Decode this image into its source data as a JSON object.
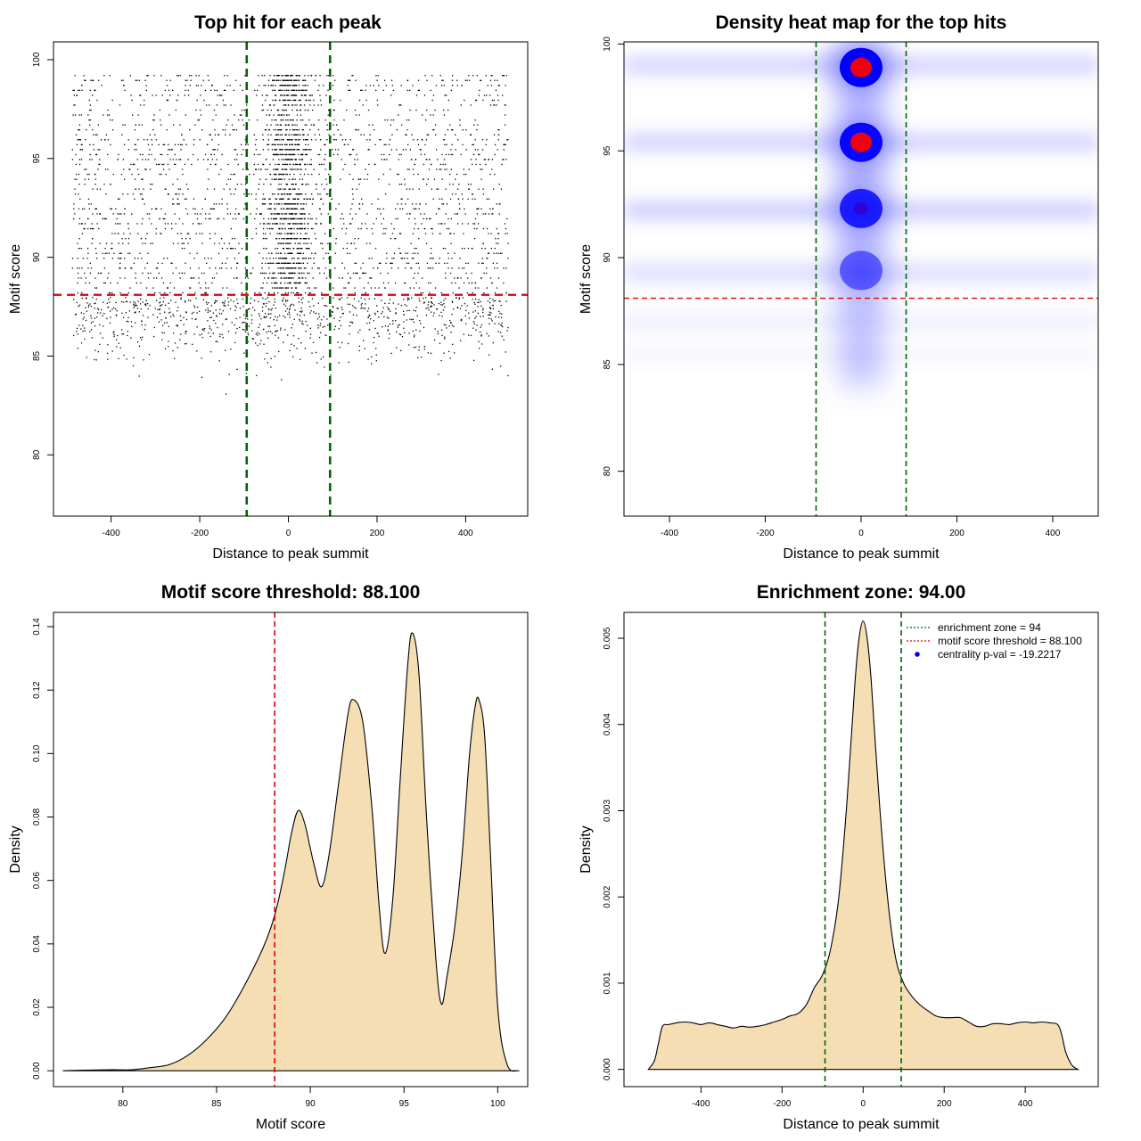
{
  "chart_data": [
    {
      "id": "scatter",
      "type": "scatter",
      "title": "Top hit for each peak",
      "xlabel": "Distance to peak summit",
      "ylabel": "Motif score",
      "xlim": [
        -530,
        540
      ],
      "ylim": [
        76.9,
        100.9
      ],
      "xticks": [
        -400,
        -200,
        0,
        200,
        400
      ],
      "yticks": [
        80,
        85,
        90,
        95,
        100
      ],
      "enrichment_zone": [
        -94,
        94
      ],
      "threshold": 88.1,
      "point_range_x": [
        -490,
        495
      ],
      "colors": {
        "points": "#000000",
        "zone": "#006400",
        "threshold": "#e00000"
      }
    },
    {
      "id": "heatmap",
      "type": "heatmap",
      "title": "Density heat map for the top hits",
      "xlabel": "Distance to peak summit",
      "ylabel": "Motif score",
      "xlim": [
        -495,
        495
      ],
      "ylim": [
        77.9,
        100.1
      ],
      "xticks": [
        -400,
        -200,
        0,
        200,
        400
      ],
      "yticks": [
        80,
        85,
        90,
        95,
        100
      ],
      "enrichment_zone": [
        -94,
        94
      ],
      "threshold": 88.1,
      "hotspots": [
        {
          "x": 0,
          "y": 98.9,
          "intensity": 1.0
        },
        {
          "x": 0,
          "y": 95.4,
          "intensity": 0.95
        },
        {
          "x": 0,
          "y": 92.3,
          "intensity": 0.8
        },
        {
          "x": 0,
          "y": 89.4,
          "intensity": 0.45
        }
      ],
      "colors": {
        "low": "#ffffff",
        "mid": "#0000ff",
        "high": "#ff0000",
        "zone": "#006400",
        "threshold": "#e00000"
      }
    },
    {
      "id": "score-density",
      "type": "area",
      "title": "Motif score threshold: 88.100",
      "xlabel": "Motif score",
      "ylabel": "Density",
      "xlim": [
        76.3,
        101.6
      ],
      "ylim": [
        -0.005,
        0.1445
      ],
      "xticks": [
        80,
        85,
        90,
        95,
        100
      ],
      "yticks": [
        0.0,
        0.02,
        0.04,
        0.06,
        0.08,
        0.1,
        0.12,
        0.14
      ],
      "ytick_labels": [
        "0.00",
        "0.02",
        "0.04",
        "0.06",
        "0.08",
        "0.10",
        "0.12",
        "0.14"
      ],
      "threshold": 88.1,
      "x": [
        76.8,
        78,
        79.5,
        80.5,
        81.5,
        82.5,
        83.5,
        84.5,
        85.5,
        86.5,
        87.5,
        88.1,
        88.6,
        89.0,
        89.35,
        89.7,
        90.2,
        90.6,
        91.0,
        91.5,
        92.0,
        92.3,
        92.8,
        93.3,
        93.7,
        94.0,
        94.4,
        94.8,
        95.2,
        95.45,
        95.8,
        96.2,
        96.7,
        97.0,
        97.3,
        97.7,
        98.1,
        98.5,
        98.8,
        99.0,
        99.3,
        99.6,
        100.0,
        100.5,
        101.1
      ],
      "y": [
        0.0,
        0.0002,
        0.0003,
        0.0003,
        0.001,
        0.002,
        0.005,
        0.01,
        0.017,
        0.027,
        0.039,
        0.049,
        0.062,
        0.075,
        0.082,
        0.078,
        0.065,
        0.058,
        0.068,
        0.09,
        0.112,
        0.117,
        0.11,
        0.082,
        0.05,
        0.037,
        0.054,
        0.092,
        0.128,
        0.138,
        0.125,
        0.08,
        0.035,
        0.021,
        0.03,
        0.045,
        0.068,
        0.1,
        0.115,
        0.117,
        0.106,
        0.07,
        0.02,
        0.002,
        0.0
      ],
      "colors": {
        "fill": "#f5deb3",
        "line": "#000000",
        "threshold": "#e00000"
      }
    },
    {
      "id": "distance-density",
      "type": "area",
      "title": "Enrichment zone: 94.00",
      "xlabel": "Distance to peak summit",
      "ylabel": "Density",
      "xlim": [
        -590,
        580
      ],
      "ylim": [
        -0.0002,
        0.0053
      ],
      "xticks": [
        -400,
        -200,
        0,
        200,
        400
      ],
      "yticks": [
        0.0,
        0.001,
        0.002,
        0.003,
        0.004,
        0.005
      ],
      "ytick_labels": [
        "0.000",
        "0.001",
        "0.002",
        "0.003",
        "0.004",
        "0.005"
      ],
      "enrichment_zone": [
        -94,
        94
      ],
      "x": [
        -530,
        -515,
        -505,
        -495,
        -480,
        -460,
        -440,
        -420,
        -400,
        -380,
        -360,
        -340,
        -320,
        -300,
        -280,
        -260,
        -240,
        -220,
        -200,
        -180,
        -160,
        -140,
        -120,
        -100,
        -80,
        -60,
        -40,
        -20,
        -10,
        0,
        10,
        20,
        40,
        60,
        80,
        100,
        120,
        140,
        160,
        180,
        200,
        220,
        240,
        260,
        280,
        300,
        320,
        340,
        360,
        380,
        400,
        420,
        440,
        460,
        480,
        490,
        500,
        515,
        530
      ],
      "y": [
        0.0,
        0.0001,
        0.0003,
        0.0005,
        0.00052,
        0.00054,
        0.00055,
        0.00054,
        0.00052,
        0.00054,
        0.00052,
        0.0005,
        0.00048,
        0.0005,
        0.00049,
        0.0005,
        0.00052,
        0.00055,
        0.00058,
        0.00062,
        0.00065,
        0.00075,
        0.00095,
        0.0011,
        0.0014,
        0.002,
        0.0031,
        0.0045,
        0.005,
        0.0052,
        0.005,
        0.0045,
        0.0031,
        0.002,
        0.0013,
        0.001,
        0.00085,
        0.00075,
        0.00068,
        0.00062,
        0.0006,
        0.0006,
        0.0006,
        0.00055,
        0.0005,
        0.0005,
        0.00053,
        0.00053,
        0.00052,
        0.00054,
        0.00055,
        0.00054,
        0.00055,
        0.00054,
        0.00052,
        0.0004,
        0.0002,
        5e-05,
        0.0
      ],
      "legend": [
        {
          "label": "enrichment zone = 94",
          "color": "#006400",
          "kind": "dotted-line"
        },
        {
          "label": "motif score threshold = 88.100",
          "color": "#e00000",
          "kind": "dotted-line"
        },
        {
          "label": "centrality p-val = -19.2217",
          "color": "#0000ff",
          "kind": "point"
        }
      ],
      "colors": {
        "fill": "#f5deb3",
        "line": "#000000",
        "zone": "#006400"
      }
    }
  ]
}
